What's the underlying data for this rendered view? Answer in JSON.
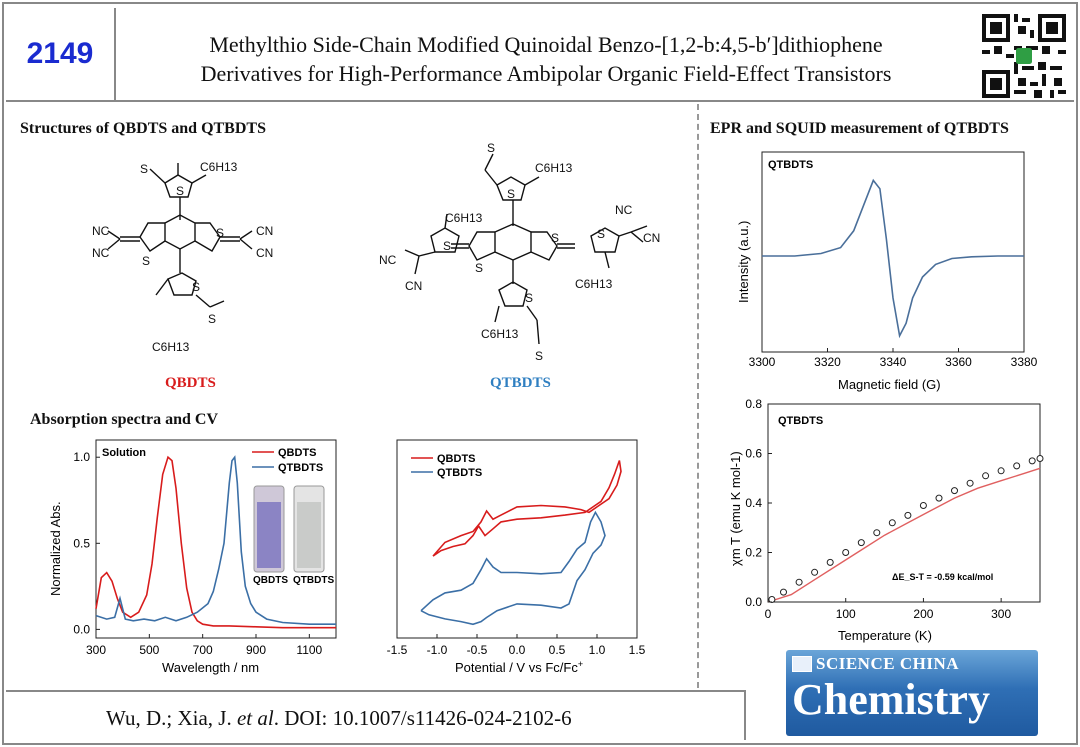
{
  "header": {
    "number": "2149",
    "title_line1": "Methylthio Side-Chain Modified Quinoidal Benzo-[1,2-b:4,5-b′]dithiophene",
    "title_line2": "Derivatives for High-Performance Ambipolar Organic Field-Effect Transistors"
  },
  "sections": {
    "structures": "Structures of QBDTS and QTBDTS",
    "absorption": "Absorption spectra and CV",
    "epr": "EPR and SQUID measurement of QTBDTS"
  },
  "molecules": {
    "left_label": "QBDTS",
    "right_label": "QTBDTS",
    "left_color": "#d81c1c",
    "right_color": "#2f7fc1",
    "atoms": {
      "s": "S",
      "sme": "S",
      "hexyl": "C6H13",
      "nc": "NC",
      "cn": "CN"
    }
  },
  "chart_data": [
    {
      "type": "line",
      "panel": "absorption",
      "xlabel": "Wavelength / nm",
      "ylabel": "Normalized Abs.",
      "xlim": [
        300,
        1200
      ],
      "ylim": [
        -0.05,
        1.1
      ],
      "xticks": [
        "300",
        "500",
        "700",
        "900",
        "1100"
      ],
      "yticks": [
        "0.0",
        "0.5",
        "1.0"
      ],
      "annotation": "Solution",
      "vial_labels": [
        "QBDTS",
        "QTBDTS"
      ],
      "series": [
        {
          "name": "QBDTS",
          "color": "#d81c1c",
          "x": [
            300,
            320,
            340,
            360,
            380,
            400,
            430,
            460,
            490,
            510,
            530,
            550,
            570,
            585,
            600,
            620,
            640,
            660,
            680,
            700,
            740,
            800,
            900,
            1000,
            1100,
            1200
          ],
          "y": [
            0.12,
            0.3,
            0.33,
            0.28,
            0.18,
            0.1,
            0.07,
            0.1,
            0.2,
            0.38,
            0.65,
            0.9,
            1.0,
            0.98,
            0.82,
            0.5,
            0.24,
            0.1,
            0.05,
            0.03,
            0.02,
            0.02,
            0.015,
            0.01,
            0.01,
            0.01
          ]
        },
        {
          "name": "QTBDTS",
          "color": "#3b6fa6",
          "x": [
            300,
            340,
            370,
            390,
            410,
            440,
            480,
            520,
            560,
            600,
            640,
            680,
            720,
            740,
            760,
            780,
            800,
            810,
            820,
            830,
            845,
            860,
            880,
            900,
            940,
            1000,
            1100,
            1200
          ],
          "y": [
            0.08,
            0.06,
            0.07,
            0.18,
            0.06,
            0.05,
            0.06,
            0.05,
            0.07,
            0.05,
            0.07,
            0.1,
            0.15,
            0.22,
            0.35,
            0.5,
            0.85,
            0.98,
            1.0,
            0.85,
            0.45,
            0.25,
            0.15,
            0.1,
            0.06,
            0.04,
            0.03,
            0.03
          ]
        }
      ]
    },
    {
      "type": "line",
      "panel": "cv",
      "xlabel": "Potential / V vs Fc/Fc",
      "xlabel_sup": "+",
      "xlim": [
        -1.5,
        1.5
      ],
      "xticks": [
        "-1.5",
        "-1.0",
        "-0.5",
        "0.0",
        "0.5",
        "1.0",
        "1.5"
      ],
      "series": [
        {
          "name": "QBDTS",
          "color": "#d81c1c",
          "x": [
            -1.05,
            -0.95,
            -0.8,
            -0.65,
            -0.55,
            -0.48,
            -0.4,
            -0.3,
            -0.2,
            0.0,
            0.3,
            0.6,
            0.85,
            0.95,
            1.05,
            1.15,
            1.22,
            1.28,
            1.3,
            1.25,
            1.15,
            1.0,
            0.9,
            0.8,
            0.6,
            0.3,
            0.0,
            -0.2,
            -0.3,
            -0.38,
            -0.45,
            -0.55,
            -0.7,
            -0.9,
            -1.05
          ],
          "y": [
            0.3,
            0.34,
            0.37,
            0.39,
            0.45,
            0.52,
            0.45,
            0.5,
            0.55,
            0.57,
            0.58,
            0.6,
            0.62,
            0.66,
            0.7,
            0.8,
            0.9,
            1.0,
            0.92,
            0.82,
            0.72,
            0.66,
            0.62,
            0.64,
            0.66,
            0.67,
            0.66,
            0.6,
            0.57,
            0.63,
            0.55,
            0.48,
            0.45,
            0.4,
            0.3
          ]
        },
        {
          "name": "QTBDTS",
          "color": "#3b6fa6",
          "x": [
            -1.2,
            -1.05,
            -0.9,
            -0.7,
            -0.55,
            -0.45,
            -0.38,
            -0.3,
            -0.2,
            0.0,
            0.3,
            0.55,
            0.65,
            0.75,
            0.85,
            0.92,
            0.98,
            1.05,
            1.1,
            1.05,
            0.95,
            0.85,
            0.75,
            0.65,
            0.55,
            0.3,
            0.0,
            -0.25,
            -0.38,
            -0.45,
            -0.55,
            -0.7,
            -0.9,
            -1.1,
            -1.2
          ],
          "y": [
            -0.1,
            -0.02,
            0.03,
            0.05,
            0.1,
            0.2,
            0.28,
            0.22,
            0.18,
            0.18,
            0.17,
            0.18,
            0.26,
            0.35,
            0.4,
            0.55,
            0.62,
            0.55,
            0.45,
            0.38,
            0.32,
            0.2,
            0.12,
            -0.05,
            -0.08,
            -0.06,
            -0.05,
            -0.1,
            -0.15,
            -0.18,
            -0.2,
            -0.18,
            -0.16,
            -0.13,
            -0.1
          ]
        }
      ]
    },
    {
      "type": "line",
      "panel": "epr",
      "annotation": "QTBDTS",
      "xlabel": "Magnetic field (G)",
      "ylabel": "Intensity (a.u.)",
      "xlim": [
        3300,
        3380
      ],
      "xticks": [
        "3300",
        "3320",
        "3340",
        "3360",
        "3380"
      ],
      "series": [
        {
          "name": "QTBDTS",
          "color": "#4a6f9a",
          "x": [
            3300,
            3310,
            3318,
            3324,
            3328,
            3331,
            3334,
            3336,
            3338,
            3340,
            3342,
            3344,
            3346,
            3349,
            3353,
            3358,
            3364,
            3372,
            3380
          ],
          "y": [
            0.0,
            0.0,
            0.03,
            0.1,
            0.3,
            0.6,
            0.9,
            0.8,
            0.2,
            -0.5,
            -0.95,
            -0.8,
            -0.5,
            -0.25,
            -0.1,
            -0.03,
            -0.01,
            0.0,
            0.0
          ]
        }
      ]
    },
    {
      "type": "scatter",
      "panel": "squid",
      "annotation": "QTBDTS",
      "xlabel": "Temperature (K)",
      "ylabel": "χm T (emu K mol-1)",
      "fit_label": "ΔE_S-T = -0.59 kcal/mol",
      "xlim": [
        0,
        350
      ],
      "ylim": [
        0,
        0.8
      ],
      "xticks": [
        "0",
        "100",
        "200",
        "300"
      ],
      "yticks": [
        "0.0",
        "0.2",
        "0.4",
        "0.6",
        "0.8"
      ],
      "series": [
        {
          "name": "experimental",
          "color": "#222222",
          "x": [
            5,
            20,
            40,
            60,
            80,
            100,
            120,
            140,
            160,
            180,
            200,
            220,
            240,
            260,
            280,
            300,
            320,
            340,
            350
          ],
          "y": [
            0.01,
            0.04,
            0.08,
            0.12,
            0.16,
            0.2,
            0.24,
            0.28,
            0.32,
            0.35,
            0.39,
            0.42,
            0.45,
            0.48,
            0.51,
            0.53,
            0.55,
            0.57,
            0.58
          ]
        },
        {
          "name": "fit",
          "color": "#e06060",
          "x": [
            0,
            30,
            60,
            90,
            120,
            150,
            180,
            210,
            240,
            270,
            300,
            330,
            350
          ],
          "y": [
            0.0,
            0.03,
            0.09,
            0.15,
            0.21,
            0.27,
            0.32,
            0.37,
            0.42,
            0.46,
            0.49,
            0.52,
            0.54
          ]
        }
      ]
    }
  ],
  "footer": {
    "citation_pre": "Wu, D.; Xia, J. ",
    "citation_etal": "et al",
    "citation_post": ". DOI: 10.1007/s11426-024-2102-6",
    "logo_top": "SCIENCE CHINA",
    "logo_main": "Chemistry"
  }
}
